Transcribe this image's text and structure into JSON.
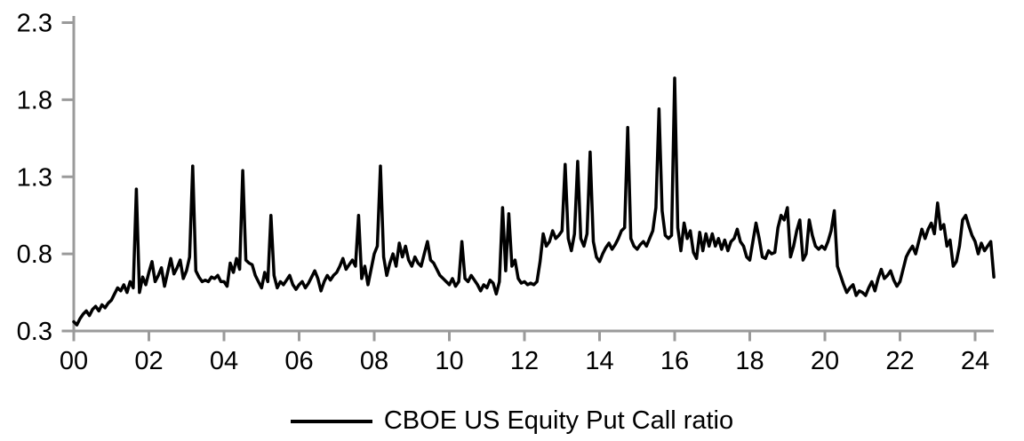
{
  "chart_data": {
    "type": "line",
    "title": "",
    "xlabel": "",
    "ylabel": "",
    "ylim": [
      0.3,
      2.3
    ],
    "xlim_years": [
      2000,
      2024.5
    ],
    "grid": false,
    "legend_position": "bottom-center",
    "axis_color": "#9a9a9a",
    "line_color": "#000000",
    "y_ticks": [
      {
        "value": 0.3,
        "label": "0.3"
      },
      {
        "value": 0.8,
        "label": "0.8"
      },
      {
        "value": 1.3,
        "label": "1.3"
      },
      {
        "value": 1.8,
        "label": "1.8"
      },
      {
        "value": 2.3,
        "label": "2.3"
      }
    ],
    "x_ticks": [
      {
        "year_offset": 0,
        "label": "00"
      },
      {
        "year_offset": 2,
        "label": "02"
      },
      {
        "year_offset": 4,
        "label": "04"
      },
      {
        "year_offset": 6,
        "label": "06"
      },
      {
        "year_offset": 8,
        "label": "08"
      },
      {
        "year_offset": 10,
        "label": "10"
      },
      {
        "year_offset": 12,
        "label": "12"
      },
      {
        "year_offset": 14,
        "label": "14"
      },
      {
        "year_offset": 16,
        "label": "16"
      },
      {
        "year_offset": 18,
        "label": "18"
      },
      {
        "year_offset": 20,
        "label": "20"
      },
      {
        "year_offset": 22,
        "label": "22"
      },
      {
        "year_offset": 24,
        "label": "24"
      }
    ],
    "series": [
      {
        "name": "CBOE US Equity Put Call ratio",
        "color": "#000000",
        "x_start_year": 2000,
        "points_per_year": 12,
        "values": [
          0.36,
          0.34,
          0.38,
          0.41,
          0.43,
          0.4,
          0.44,
          0.46,
          0.43,
          0.47,
          0.45,
          0.48,
          0.5,
          0.54,
          0.58,
          0.56,
          0.6,
          0.55,
          0.62,
          0.58,
          1.22,
          0.55,
          0.65,
          0.6,
          0.68,
          0.75,
          0.62,
          0.66,
          0.71,
          0.59,
          0.68,
          0.77,
          0.67,
          0.71,
          0.76,
          0.64,
          0.69,
          0.78,
          1.37,
          0.69,
          0.65,
          0.62,
          0.63,
          0.62,
          0.65,
          0.64,
          0.66,
          0.62,
          0.62,
          0.59,
          0.74,
          0.68,
          0.77,
          0.7,
          1.34,
          0.76,
          0.74,
          0.73,
          0.66,
          0.62,
          0.58,
          0.68,
          0.62,
          1.05,
          0.66,
          0.58,
          0.62,
          0.6,
          0.63,
          0.66,
          0.6,
          0.57,
          0.6,
          0.62,
          0.58,
          0.61,
          0.65,
          0.69,
          0.64,
          0.56,
          0.62,
          0.66,
          0.63,
          0.66,
          0.68,
          0.72,
          0.77,
          0.7,
          0.73,
          0.76,
          0.72,
          1.05,
          0.64,
          0.72,
          0.6,
          0.7,
          0.8,
          0.85,
          1.37,
          0.78,
          0.66,
          0.74,
          0.8,
          0.72,
          0.87,
          0.78,
          0.85,
          0.76,
          0.72,
          0.78,
          0.74,
          0.72,
          0.8,
          0.88,
          0.76,
          0.74,
          0.7,
          0.66,
          0.64,
          0.62,
          0.6,
          0.64,
          0.59,
          0.62,
          0.88,
          0.64,
          0.62,
          0.66,
          0.63,
          0.6,
          0.56,
          0.6,
          0.58,
          0.63,
          0.61,
          0.54,
          0.62,
          1.1,
          0.69,
          1.06,
          0.72,
          0.76,
          0.64,
          0.61,
          0.62,
          0.6,
          0.61,
          0.6,
          0.62,
          0.75,
          0.93,
          0.85,
          0.88,
          0.95,
          0.9,
          0.92,
          0.95,
          1.38,
          0.9,
          0.82,
          0.93,
          1.4,
          0.9,
          0.85,
          0.93,
          1.46,
          0.88,
          0.78,
          0.75,
          0.8,
          0.84,
          0.87,
          0.83,
          0.86,
          0.9,
          0.95,
          0.97,
          1.62,
          0.9,
          0.85,
          0.83,
          0.86,
          0.88,
          0.85,
          0.9,
          0.95,
          1.1,
          1.74,
          1.08,
          0.92,
          0.9,
          0.92,
          1.94,
          0.97,
          0.82,
          1.0,
          0.9,
          0.95,
          0.81,
          0.77,
          0.94,
          0.82,
          0.93,
          0.85,
          0.93,
          0.85,
          0.9,
          0.83,
          0.89,
          0.82,
          0.88,
          0.9,
          0.96,
          0.88,
          0.85,
          0.78,
          0.76,
          0.88,
          1.0,
          0.9,
          0.78,
          0.77,
          0.82,
          0.8,
          0.81,
          0.97,
          1.05,
          1.02,
          1.1,
          0.78,
          0.85,
          0.95,
          1.02,
          0.76,
          0.8,
          1.02,
          0.92,
          0.85,
          0.83,
          0.85,
          0.83,
          0.88,
          0.95,
          1.08,
          0.72,
          0.66,
          0.6,
          0.55,
          0.58,
          0.6,
          0.53,
          0.56,
          0.55,
          0.53,
          0.58,
          0.62,
          0.56,
          0.64,
          0.7,
          0.64,
          0.66,
          0.69,
          0.63,
          0.59,
          0.62,
          0.7,
          0.78,
          0.82,
          0.85,
          0.8,
          0.88,
          0.96,
          0.9,
          0.96,
          1.0,
          0.93,
          1.13,
          0.96,
          0.99,
          0.85,
          0.89,
          0.72,
          0.75,
          0.85,
          1.02,
          1.05,
          0.98,
          0.92,
          0.88,
          0.8,
          0.87,
          0.82,
          0.85,
          0.88,
          0.65
        ]
      }
    ]
  },
  "legend": {
    "label": "CBOE US Equity Put Call ratio"
  }
}
